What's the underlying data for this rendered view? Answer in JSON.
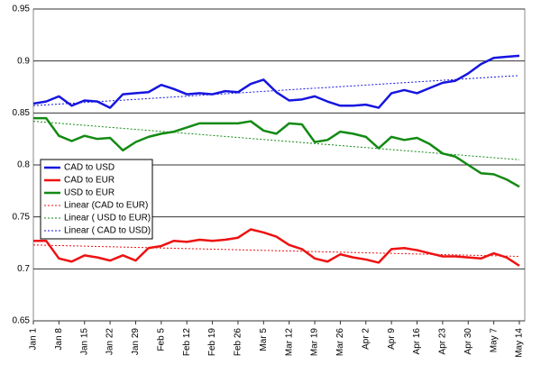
{
  "chart_data": {
    "type": "line",
    "categories": [
      "Jan 1",
      null,
      "Jan 8",
      null,
      "Jan 15",
      null,
      "Jan 22",
      null,
      "Jan 29",
      null,
      "Feb 5",
      null,
      "Feb 12",
      null,
      "Feb 19",
      null,
      "Feb 26",
      null,
      "Mar 5",
      null,
      "Mar 12",
      null,
      "Mar 19",
      null,
      "Mar 26",
      null,
      "Apr 2",
      null,
      "Apr 9",
      null,
      "Apr 16",
      null,
      "Apr 23",
      null,
      "Apr 30",
      null,
      "May 7",
      null,
      "May 14"
    ],
    "series": [
      {
        "name": "CAD to USD",
        "color": "#1515e0",
        "values": [
          0.859,
          0.861,
          0.866,
          0.857,
          0.862,
          0.861,
          0.855,
          0.868,
          0.869,
          0.87,
          0.877,
          0.873,
          0.868,
          0.869,
          0.868,
          0.871,
          0.87,
          0.878,
          0.882,
          0.87,
          0.862,
          0.863,
          0.866,
          0.861,
          0.857,
          0.857,
          0.858,
          0.855,
          0.869,
          0.872,
          0.869,
          0.874,
          0.879,
          0.881,
          0.888,
          0.897,
          0.903,
          0.904,
          0.905
        ]
      },
      {
        "name": "CAD to EUR",
        "color": "#ee1111",
        "values": [
          0.727,
          0.727,
          0.71,
          0.707,
          0.713,
          0.711,
          0.708,
          0.713,
          0.708,
          0.72,
          0.722,
          0.727,
          0.726,
          0.728,
          0.727,
          0.728,
          0.73,
          0.738,
          0.735,
          0.731,
          0.723,
          0.719,
          0.71,
          0.707,
          0.714,
          0.711,
          0.709,
          0.706,
          0.719,
          0.72,
          0.718,
          0.715,
          0.712,
          0.712,
          0.711,
          0.71,
          0.715,
          0.711,
          0.703
        ]
      },
      {
        "name": "USD to EUR",
        "color": "#138a13",
        "values": [
          0.845,
          0.845,
          0.828,
          0.823,
          0.828,
          0.825,
          0.826,
          0.814,
          0.822,
          0.827,
          0.83,
          0.832,
          0.836,
          0.84,
          0.84,
          0.84,
          0.84,
          0.842,
          0.833,
          0.83,
          0.84,
          0.839,
          0.822,
          0.824,
          0.832,
          0.83,
          0.827,
          0.816,
          0.827,
          0.824,
          0.826,
          0.82,
          0.811,
          0.808,
          0.8,
          0.792,
          0.791,
          0.786,
          0.779
        ]
      }
    ],
    "trendlines": [
      {
        "name": "Linear (CAD to EUR)",
        "color": "#ee1111",
        "start": 0.723,
        "end": 0.712
      },
      {
        "name": "Linear ( USD to EUR)",
        "color": "#138a13",
        "start": 0.842,
        "end": 0.805
      },
      {
        "name": "Linear ( CAD to USD)",
        "color": "#1515e0",
        "start": 0.857,
        "end": 0.886
      }
    ],
    "ylim": [
      0.65,
      0.95
    ],
    "yticks": [
      0.65,
      0.7,
      0.75,
      0.8,
      0.85,
      0.9,
      0.95
    ],
    "grid": true
  }
}
